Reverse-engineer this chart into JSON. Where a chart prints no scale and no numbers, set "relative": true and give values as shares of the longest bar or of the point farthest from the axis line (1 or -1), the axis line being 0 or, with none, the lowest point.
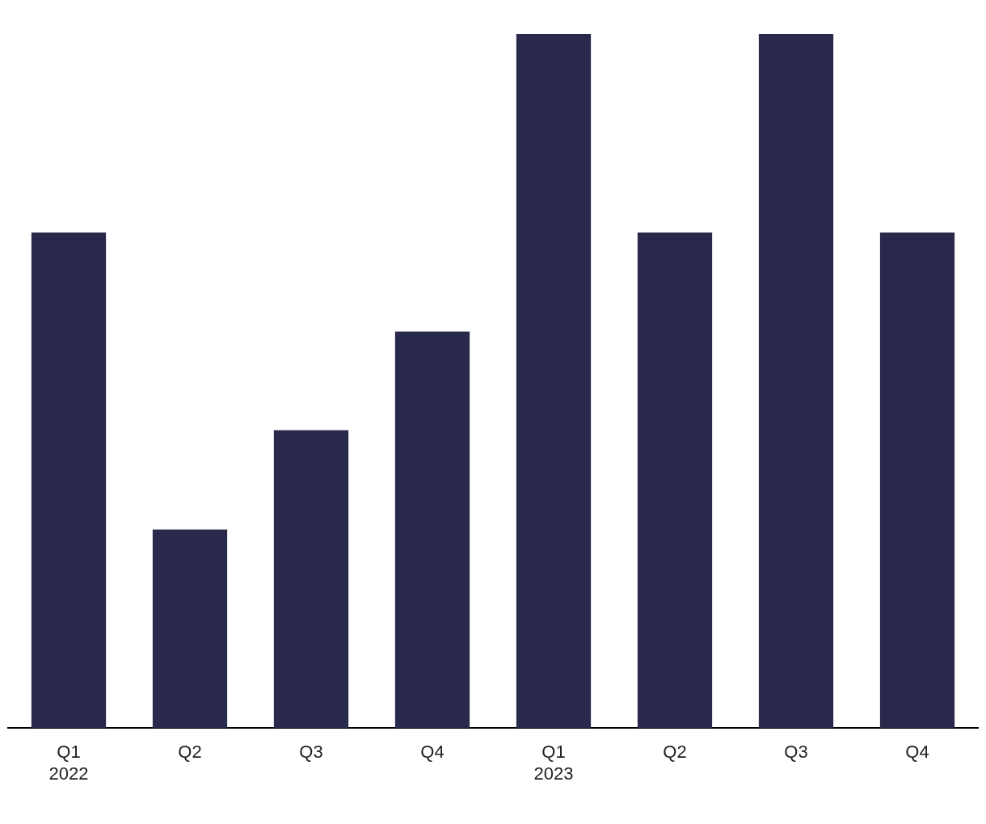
{
  "chart_data": {
    "type": "bar",
    "relative": true,
    "categories": [
      "Q1\n2022",
      "Q2",
      "Q3",
      "Q4",
      "Q1\n2023",
      "Q2",
      "Q3",
      "Q4"
    ],
    "values": [
      0.714,
      0.286,
      0.429,
      0.571,
      1,
      0.714,
      1,
      0.714
    ],
    "color": "#29294b",
    "grid": false,
    "legend": false
  }
}
